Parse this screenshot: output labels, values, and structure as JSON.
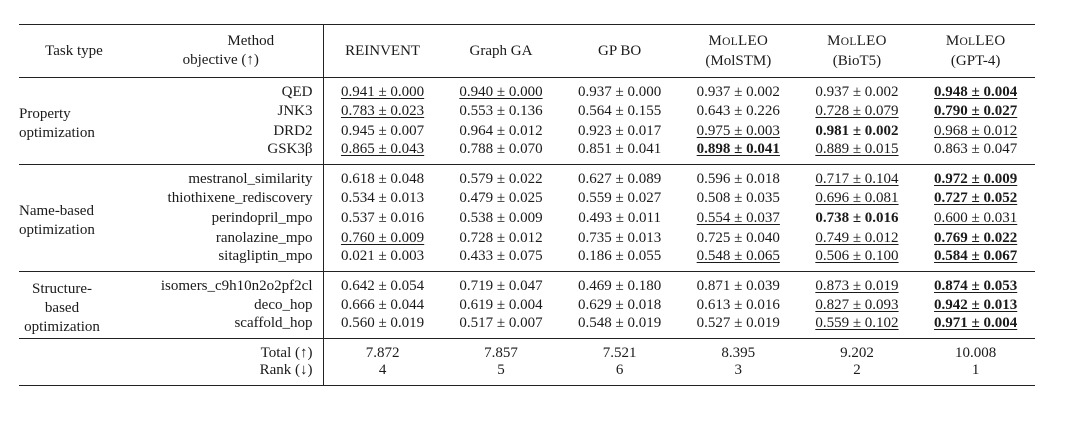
{
  "header": {
    "task_type": "Task type",
    "method_line1": "Method",
    "objective_line2": "objective (↑)",
    "methods": [
      {
        "l1": "REINVENT",
        "l2": ""
      },
      {
        "l1": "Graph GA",
        "l2": ""
      },
      {
        "l1": "GP BO",
        "l2": ""
      },
      {
        "l1": "MolLEO",
        "l2": "(MolSTM)"
      },
      {
        "l1": "MolLEO",
        "l2": "(BioT5)"
      },
      {
        "l1": "MolLEO",
        "l2": "(GPT-4)"
      }
    ]
  },
  "groups": [
    {
      "task_lines": [
        "Property",
        "optimization"
      ],
      "rows": [
        {
          "objective": "QED",
          "cells": [
            {
              "v": "0.941 ± 0.000",
              "u": true,
              "b": false
            },
            {
              "v": "0.940 ± 0.000",
              "u": true,
              "b": false
            },
            {
              "v": "0.937 ± 0.000",
              "u": false,
              "b": false
            },
            {
              "v": "0.937 ± 0.002",
              "u": false,
              "b": false
            },
            {
              "v": "0.937 ± 0.002",
              "u": false,
              "b": false
            },
            {
              "v": "0.948 ± 0.004",
              "u": true,
              "b": true
            }
          ]
        },
        {
          "objective": "JNK3",
          "cells": [
            {
              "v": "0.783 ± 0.023",
              "u": true,
              "b": false
            },
            {
              "v": "0.553 ± 0.136",
              "u": false,
              "b": false
            },
            {
              "v": "0.564 ± 0.155",
              "u": false,
              "b": false
            },
            {
              "v": "0.643 ± 0.226",
              "u": false,
              "b": false
            },
            {
              "v": "0.728 ± 0.079",
              "u": true,
              "b": false
            },
            {
              "v": "0.790 ± 0.027",
              "u": true,
              "b": true
            }
          ]
        },
        {
          "objective": "DRD2",
          "cells": [
            {
              "v": "0.945 ± 0.007",
              "u": false,
              "b": false
            },
            {
              "v": "0.964 ± 0.012",
              "u": false,
              "b": false
            },
            {
              "v": "0.923 ± 0.017",
              "u": false,
              "b": false
            },
            {
              "v": "0.975 ± 0.003",
              "u": true,
              "b": false
            },
            {
              "v": "0.981 ± 0.002",
              "u": false,
              "b": true
            },
            {
              "v": "0.968 ± 0.012",
              "u": true,
              "b": false
            }
          ]
        },
        {
          "objective": "GSK3β",
          "cells": [
            {
              "v": "0.865 ± 0.043",
              "u": true,
              "b": false
            },
            {
              "v": "0.788 ± 0.070",
              "u": false,
              "b": false
            },
            {
              "v": "0.851 ± 0.041",
              "u": false,
              "b": false
            },
            {
              "v": "0.898 ± 0.041",
              "u": true,
              "b": true
            },
            {
              "v": "0.889 ± 0.015",
              "u": true,
              "b": false
            },
            {
              "v": "0.863 ± 0.047",
              "u": false,
              "b": false
            }
          ]
        }
      ]
    },
    {
      "task_lines": [
        "Name-based",
        "optimization"
      ],
      "rows": [
        {
          "objective": "mestranol_similarity",
          "cells": [
            {
              "v": "0.618 ± 0.048",
              "u": false,
              "b": false
            },
            {
              "v": "0.579 ± 0.022",
              "u": false,
              "b": false
            },
            {
              "v": "0.627 ± 0.089",
              "u": false,
              "b": false
            },
            {
              "v": "0.596 ± 0.018",
              "u": false,
              "b": false
            },
            {
              "v": "0.717 ± 0.104",
              "u": true,
              "b": false
            },
            {
              "v": "0.972 ± 0.009",
              "u": true,
              "b": true
            }
          ]
        },
        {
          "objective": "thiothixene_rediscovery",
          "cells": [
            {
              "v": "0.534 ± 0.013",
              "u": false,
              "b": false
            },
            {
              "v": "0.479 ± 0.025",
              "u": false,
              "b": false
            },
            {
              "v": "0.559 ± 0.027",
              "u": false,
              "b": false
            },
            {
              "v": "0.508 ± 0.035",
              "u": false,
              "b": false
            },
            {
              "v": "0.696 ± 0.081",
              "u": true,
              "b": false
            },
            {
              "v": "0.727 ± 0.052",
              "u": true,
              "b": true
            }
          ]
        },
        {
          "objective": "perindopril_mpo",
          "cells": [
            {
              "v": "0.537 ± 0.016",
              "u": false,
              "b": false
            },
            {
              "v": "0.538 ± 0.009",
              "u": false,
              "b": false
            },
            {
              "v": "0.493 ± 0.011",
              "u": false,
              "b": false
            },
            {
              "v": "0.554 ± 0.037",
              "u": true,
              "b": false
            },
            {
              "v": "0.738 ± 0.016",
              "u": false,
              "b": true
            },
            {
              "v": "0.600 ± 0.031",
              "u": true,
              "b": false
            }
          ]
        },
        {
          "objective": "ranolazine_mpo",
          "cells": [
            {
              "v": "0.760 ± 0.009",
              "u": true,
              "b": false
            },
            {
              "v": "0.728 ± 0.012",
              "u": false,
              "b": false
            },
            {
              "v": "0.735 ± 0.013",
              "u": false,
              "b": false
            },
            {
              "v": "0.725 ± 0.040",
              "u": false,
              "b": false
            },
            {
              "v": "0.749 ± 0.012",
              "u": true,
              "b": false
            },
            {
              "v": "0.769 ± 0.022",
              "u": true,
              "b": true
            }
          ]
        },
        {
          "objective": "sitagliptin_mpo",
          "cells": [
            {
              "v": "0.021 ± 0.003",
              "u": false,
              "b": false
            },
            {
              "v": "0.433 ± 0.075",
              "u": false,
              "b": false
            },
            {
              "v": "0.186 ± 0.055",
              "u": false,
              "b": false
            },
            {
              "v": "0.548 ± 0.065",
              "u": true,
              "b": false
            },
            {
              "v": "0.506 ± 0.100",
              "u": true,
              "b": false
            },
            {
              "v": "0.584 ± 0.067",
              "u": true,
              "b": true
            }
          ]
        }
      ]
    },
    {
      "task_lines": [
        "Structure-",
        "based",
        "optimization"
      ],
      "rows": [
        {
          "objective": "isomers_c9h10n2o2pf2cl",
          "cells": [
            {
              "v": "0.642 ± 0.054",
              "u": false,
              "b": false
            },
            {
              "v": "0.719 ± 0.047",
              "u": false,
              "b": false
            },
            {
              "v": "0.469 ± 0.180",
              "u": false,
              "b": false
            },
            {
              "v": "0.871 ± 0.039",
              "u": false,
              "b": false
            },
            {
              "v": "0.873 ± 0.019",
              "u": true,
              "b": false
            },
            {
              "v": "0.874 ± 0.053",
              "u": true,
              "b": true
            }
          ]
        },
        {
          "objective": "deco_hop",
          "cells": [
            {
              "v": "0.666 ± 0.044",
              "u": false,
              "b": false
            },
            {
              "v": "0.619 ± 0.004",
              "u": false,
              "b": false
            },
            {
              "v": "0.629 ± 0.018",
              "u": false,
              "b": false
            },
            {
              "v": "0.613 ± 0.016",
              "u": false,
              "b": false
            },
            {
              "v": "0.827 ± 0.093",
              "u": true,
              "b": false
            },
            {
              "v": "0.942 ± 0.013",
              "u": true,
              "b": true
            }
          ]
        },
        {
          "objective": "scaffold_hop",
          "cells": [
            {
              "v": "0.560 ± 0.019",
              "u": false,
              "b": false
            },
            {
              "v": "0.517 ± 0.007",
              "u": false,
              "b": false
            },
            {
              "v": "0.548 ± 0.019",
              "u": false,
              "b": false
            },
            {
              "v": "0.527 ± 0.019",
              "u": false,
              "b": false
            },
            {
              "v": "0.559 ± 0.102",
              "u": true,
              "b": false
            },
            {
              "v": "0.971 ± 0.004",
              "u": true,
              "b": true
            }
          ]
        }
      ]
    }
  ],
  "totals": [
    {
      "label": "Total (↑)",
      "values": [
        "7.872",
        "7.857",
        "7.521",
        "8.395",
        "9.202",
        "10.008"
      ]
    },
    {
      "label": "Rank (↓)",
      "values": [
        "4",
        "5",
        "6",
        "3",
        "2",
        "1"
      ]
    }
  ]
}
